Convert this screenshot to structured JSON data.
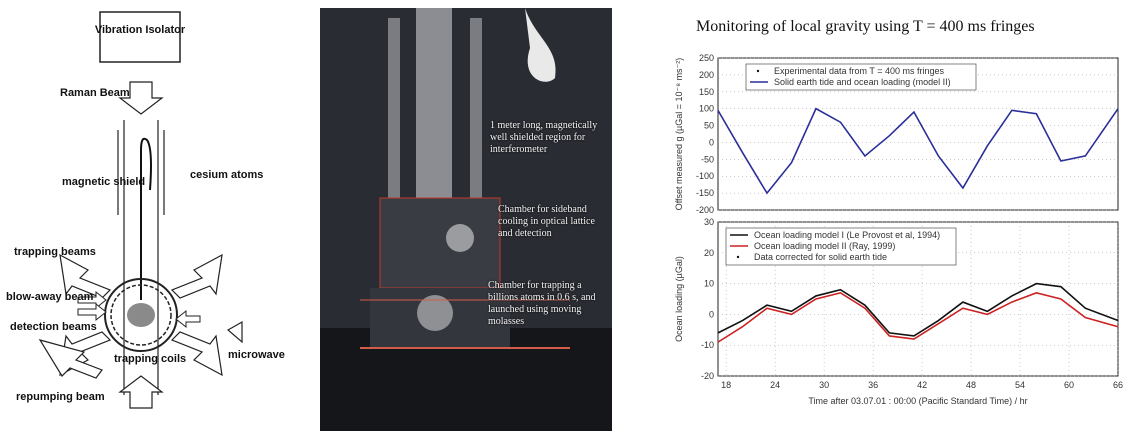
{
  "diagram": {
    "isolator": "Vibration Isolator",
    "raman": "Raman Beams",
    "cesium": "cesium atoms",
    "shield": "magnetic shield",
    "trapping_beams": "trapping beams",
    "blowaway": "blow-away beam",
    "detection": "detection beams",
    "microwave": "microwave",
    "coils": "trapping coils",
    "repump": "repumping beam"
  },
  "photo": {
    "note1": "1 meter long, magnetically well shielded region for interferometer",
    "note2": "Chamber for sideband cooling in optical lattice and detection",
    "note3": "Chamber for trapping a billions atoms in 0.6 s, and launched using moving molasses"
  },
  "chart_title": "Monitoring of local gravity using T = 400 ms fringes",
  "chart_data": [
    {
      "type": "line",
      "ylabel": "Offset measured g (µGal = 10⁻⁸ ms⁻²)",
      "xlim": [
        17,
        66
      ],
      "ylim": [
        -200,
        250
      ],
      "yticks": [
        -200,
        -150,
        -100,
        -50,
        0,
        50,
        100,
        150,
        200,
        250
      ],
      "legend": [
        "Experimental data from T = 400 ms fringes",
        "Solid earth tide and ocean loading (model II)"
      ],
      "legend_position": "top",
      "series": [
        {
          "name": "Solid earth tide and ocean loading (model II)",
          "color": "#2a2f9a",
          "x": [
            17,
            20,
            23,
            26,
            29,
            32,
            35,
            38,
            41,
            44,
            47,
            50,
            53,
            56,
            59,
            62,
            66
          ],
          "y": [
            95,
            -30,
            -150,
            -60,
            100,
            60,
            -40,
            20,
            90,
            -40,
            -135,
            -10,
            95,
            85,
            -55,
            -40,
            100
          ]
        }
      ]
    },
    {
      "type": "line",
      "ylabel": "Ocean loading (µGal)",
      "xlabel": "Time after 03.07.01 : 00:00 (Pacific Standard Time) / hr",
      "xlim": [
        17,
        66
      ],
      "ylim": [
        -20,
        30
      ],
      "xticks": [
        18,
        24,
        30,
        36,
        42,
        48,
        54,
        60,
        66
      ],
      "yticks": [
        -20,
        -10,
        0,
        10,
        20,
        30
      ],
      "legend": [
        "Ocean loading model I (Le Provost et al, 1994)",
        "Ocean loading model II (Ray, 1999)",
        "Data corrected for solid earth tide"
      ],
      "legend_position": "top-left",
      "series": [
        {
          "name": "Ocean loading model I (Le Provost et al, 1994)",
          "color": "#111111",
          "x": [
            17,
            20,
            23,
            26,
            29,
            32,
            35,
            38,
            41,
            44,
            47,
            50,
            53,
            56,
            59,
            62,
            66
          ],
          "y": [
            -6,
            -2,
            3,
            1,
            6,
            8,
            3,
            -6,
            -7,
            -2,
            4,
            1,
            6,
            10,
            9,
            2,
            -2
          ]
        },
        {
          "name": "Ocean loading model II (Ray, 1999)",
          "color": "#cc2222",
          "x": [
            17,
            20,
            23,
            26,
            29,
            32,
            35,
            38,
            41,
            44,
            47,
            50,
            53,
            56,
            59,
            62,
            66
          ],
          "y": [
            -9,
            -4,
            2,
            0,
            5,
            7,
            2,
            -7,
            -8,
            -3,
            2,
            0,
            4,
            7,
            5,
            -1,
            -4
          ]
        }
      ]
    }
  ]
}
